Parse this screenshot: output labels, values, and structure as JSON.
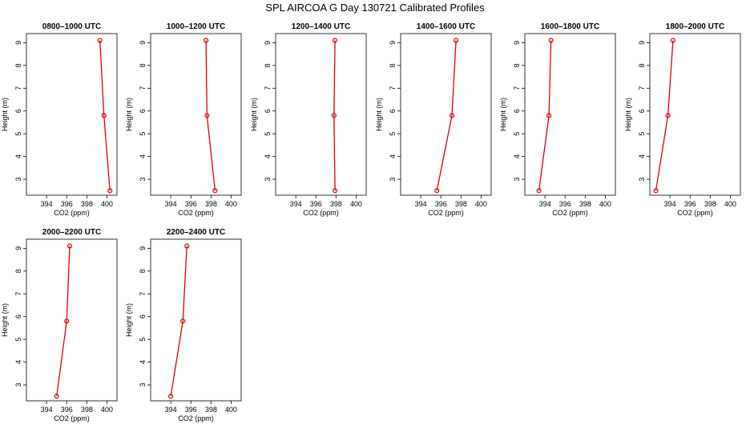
{
  "figure": {
    "title": "SPL AIRCOA G  Day 130721  Calibrated Profiles",
    "line_color": "#dd0000"
  },
  "chart_data": [
    {
      "type": "line",
      "title": "0800–1000 UTC",
      "xlabel": "CO2 (ppm)",
      "ylabel": "Height (m)",
      "xlim": [
        392,
        401
      ],
      "ylim": [
        2.3,
        9.4
      ],
      "xticks": [
        394,
        396,
        398,
        400
      ],
      "yticks": [
        3,
        4,
        5,
        6,
        7,
        8,
        9
      ],
      "grid": false,
      "x": [
        399.3,
        399.7,
        400.3
      ],
      "y": [
        9.1,
        5.8,
        2.5
      ]
    },
    {
      "type": "line",
      "title": "1000–1200 UTC",
      "xlabel": "CO2 (ppm)",
      "ylabel": "Height (m)",
      "xlim": [
        392,
        401
      ],
      "ylim": [
        2.3,
        9.4
      ],
      "xticks": [
        394,
        396,
        398,
        400
      ],
      "yticks": [
        3,
        4,
        5,
        6,
        7,
        8,
        9
      ],
      "grid": false,
      "x": [
        397.5,
        397.6,
        398.4
      ],
      "y": [
        9.1,
        5.8,
        2.5
      ]
    },
    {
      "type": "line",
      "title": "1200–1400 UTC",
      "xlabel": "CO2 (ppm)",
      "ylabel": "Height (m)",
      "xlim": [
        392,
        401
      ],
      "ylim": [
        2.3,
        9.4
      ],
      "xticks": [
        394,
        396,
        398,
        400
      ],
      "yticks": [
        3,
        4,
        5,
        6,
        7,
        8,
        9
      ],
      "grid": false,
      "x": [
        397.9,
        397.8,
        397.9
      ],
      "y": [
        9.1,
        5.8,
        2.5
      ]
    },
    {
      "type": "line",
      "title": "1400–1600 UTC",
      "xlabel": "CO2 (ppm)",
      "ylabel": "Height (m)",
      "xlim": [
        392,
        401
      ],
      "ylim": [
        2.3,
        9.4
      ],
      "xticks": [
        394,
        396,
        398,
        400
      ],
      "yticks": [
        3,
        4,
        5,
        6,
        7,
        8,
        9
      ],
      "grid": false,
      "x": [
        397.5,
        397.1,
        395.6
      ],
      "y": [
        9.1,
        5.8,
        2.5
      ]
    },
    {
      "type": "line",
      "title": "1600–1800 UTC",
      "xlabel": "CO2 (ppm)",
      "ylabel": "Height (m)",
      "xlim": [
        392,
        401
      ],
      "ylim": [
        2.3,
        9.4
      ],
      "xticks": [
        394,
        396,
        398,
        400
      ],
      "yticks": [
        3,
        4,
        5,
        6,
        7,
        8,
        9
      ],
      "grid": false,
      "x": [
        394.6,
        394.4,
        393.4
      ],
      "y": [
        9.1,
        5.8,
        2.5
      ]
    },
    {
      "type": "line",
      "title": "1800–2000 UTC",
      "xlabel": "CO2 (ppm)",
      "ylabel": "Height (m)",
      "xlim": [
        392,
        401
      ],
      "ylim": [
        2.3,
        9.4
      ],
      "xticks": [
        394,
        396,
        398,
        400
      ],
      "yticks": [
        3,
        4,
        5,
        6,
        7,
        8,
        9
      ],
      "grid": false,
      "x": [
        394.3,
        393.8,
        392.6
      ],
      "y": [
        9.1,
        5.8,
        2.5
      ]
    },
    {
      "type": "line",
      "title": "2000–2200 UTC",
      "xlabel": "CO2 (ppm)",
      "ylabel": "Height (m)",
      "xlim": [
        392,
        401
      ],
      "ylim": [
        2.3,
        9.4
      ],
      "xticks": [
        394,
        396,
        398,
        400
      ],
      "yticks": [
        3,
        4,
        5,
        6,
        7,
        8,
        9
      ],
      "grid": false,
      "x": [
        396.3,
        396.0,
        395.0
      ],
      "y": [
        9.1,
        5.8,
        2.5
      ]
    },
    {
      "type": "line",
      "title": "2200–2400 UTC",
      "xlabel": "CO2 (ppm)",
      "ylabel": "Height (m)",
      "xlim": [
        392,
        401
      ],
      "ylim": [
        2.3,
        9.4
      ],
      "xticks": [
        394,
        396,
        398,
        400
      ],
      "yticks": [
        3,
        4,
        5,
        6,
        7,
        8,
        9
      ],
      "grid": false,
      "x": [
        395.6,
        395.2,
        394.0
      ],
      "y": [
        9.1,
        5.8,
        2.5
      ]
    }
  ]
}
